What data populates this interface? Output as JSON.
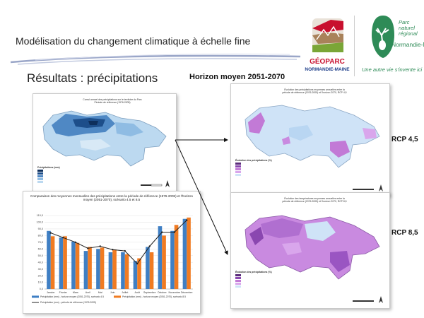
{
  "slide": {
    "title": "Modélisation du changement climatique à échelle fine",
    "subtitle": "Résultats : précipitations",
    "horizon": "Horizon moyen 2051-2070"
  },
  "logos": {
    "geoparc_name": "GÉOPARC",
    "geoparc_region": "NORMANDIE-MAINE",
    "parc_line1": "Parc",
    "parc_line2": "naturel",
    "parc_line3": "régional",
    "parc_name": "Normandie-Maine",
    "parc_tagline": "Une autre vie s'invente ici",
    "geoparc_red": "#c8102e",
    "parc_green": "#2e8b57"
  },
  "map_reference": {
    "title": "Cumul annuel des précipitations sur le territoire du Parc",
    "subtitle": "Période de référence (1976-2005)",
    "legend_title": "Précipitations (mm)"
  },
  "map_rcp45": {
    "title": "Évolution des précipitations moyennes annuelles entre la période de référence (1976-2005) et l'horizon 2070, RCP 4,5",
    "legend_title": "Évolution des précipitations (%)",
    "label": "RCP 4,5"
  },
  "map_rcp85": {
    "title": "Évolution des températures moyennes annuelles entre la période de référence (1976-2005) et l'horizon 2070, RCP 8,5",
    "legend_title": "Évolution des précipitations (%)",
    "label": "RCP 8,5"
  },
  "chart_data": {
    "type": "bar",
    "title": "Comparaison des moyennes mensuelles des précipitations entre la période de référence (1976-2005) et l'horizon moyen (2051-2070), scénario 4.5 et 8.5",
    "categories": [
      "Janvier",
      "Février",
      "Mars",
      "Avril",
      "Mai",
      "Juin",
      "Juillet",
      "Août",
      "Septembre",
      "Octobre",
      "Novembre",
      "Décembre"
    ],
    "ylim": [
      0,
      110
    ],
    "yticks": [
      "0,0",
      "10,0",
      "20,0",
      "30,0",
      "40,0",
      "50,0",
      "60,0",
      "70,0",
      "80,0",
      "90,0",
      "100,0",
      "110,0"
    ],
    "series": [
      {
        "name": "Précipitation (mm) - horizon moyen (2051-2070), scénario 4.5",
        "type": "bar",
        "color": "#3f7fc4",
        "values": [
          87,
          77,
          71,
          57,
          60,
          55,
          55,
          42,
          63,
          94,
          87,
          105
        ]
      },
      {
        "name": "Précipitation (mm) - horizon moyen (2051-2070), scénario 8.5",
        "type": "bar",
        "color": "#f07b22",
        "values": [
          79,
          79,
          69,
          63,
          62,
          59,
          52,
          46,
          55,
          80,
          96,
          107
        ]
      },
      {
        "name": "Précipitation (mm) - période de référence (1976-2005)",
        "type": "line",
        "color": "#222222",
        "values": [
          84,
          77,
          70,
          61,
          64,
          59,
          57,
          38,
          64,
          85,
          85,
          103
        ]
      }
    ]
  }
}
